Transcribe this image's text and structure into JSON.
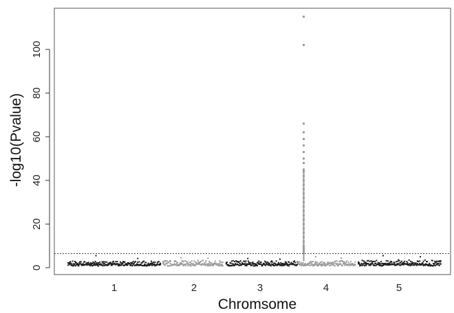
{
  "chart_data": {
    "type": "scatter",
    "subtype": "manhattan",
    "title": "",
    "xlabel": "Chromsome",
    "ylabel": "-log10(Pvalue)",
    "ylim": [
      0,
      116
    ],
    "x_tick_labels": [
      "1",
      "2",
      "3",
      "4",
      "5"
    ],
    "y_tick_labels": [
      "0",
      "20",
      "40",
      "60",
      "80",
      "100"
    ],
    "y_ticks": [
      0,
      20,
      40,
      60,
      80,
      100
    ],
    "grid": false,
    "legend": "none",
    "threshold": {
      "y": 6.5,
      "style": "dotted"
    },
    "colors": {
      "odd_chromosome": "#1a1a1a",
      "even_chromosome": "#9b9b9b",
      "threshold": "#333333"
    },
    "chromosomes": [
      {
        "name": "1",
        "color": "odd",
        "baseline_max": 3.0,
        "peaks": [
          5.5,
          4.2
        ]
      },
      {
        "name": "2",
        "color": "even",
        "baseline_max": 3.3,
        "peaks": [
          4.6,
          4.3
        ]
      },
      {
        "name": "3",
        "color": "odd",
        "baseline_max": 3.2,
        "peaks": [
          4.2,
          3.9
        ]
      },
      {
        "name": "4",
        "color": "even",
        "baseline_max": 3.2,
        "peaks": [
          5.0,
          4.4
        ],
        "spike": [
          7,
          8,
          9,
          10,
          12,
          14,
          16,
          18,
          20,
          22,
          24,
          26,
          28,
          30,
          32,
          34,
          36,
          38,
          40,
          42,
          44,
          45,
          48,
          50,
          53,
          56,
          59,
          62,
          66,
          102,
          115
        ]
      },
      {
        "name": "5",
        "color": "odd",
        "baseline_max": 3.6,
        "peaks": [
          5.5,
          5.0
        ]
      }
    ]
  }
}
